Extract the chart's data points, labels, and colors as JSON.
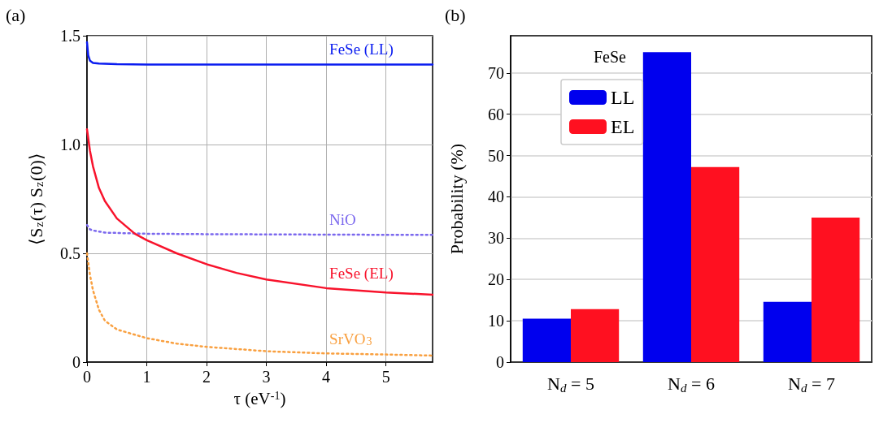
{
  "chart_data": [
    {
      "type": "line",
      "title": "(a)",
      "xlabel": "τ (eV$^{-1}$)",
      "ylabel": "⟨S$_{z}$(τ) S$_{z}$(0)⟩",
      "xlim": [
        0,
        5.78
      ],
      "ylim": [
        0,
        1.5
      ],
      "xticks": [
        0,
        1,
        2,
        3,
        4,
        5
      ],
      "yticks": [
        {
          "value": 0,
          "label": "0"
        },
        {
          "value": 0.5,
          "label": "0.5"
        },
        {
          "value": 1,
          "label": "1.0"
        },
        {
          "value": 1.5,
          "label": "1.5"
        }
      ],
      "grid": true,
      "marker": "none",
      "series": [
        {
          "name": "FeSe (LL)",
          "color": "#0a1cf0",
          "line_style": "solid",
          "x": [
            0,
            0.02,
            0.05,
            0.1,
            0.2,
            0.5,
            1,
            2,
            3,
            4,
            5,
            5.78
          ],
          "values": [
            1.47,
            1.41,
            1.385,
            1.375,
            1.372,
            1.369,
            1.368,
            1.368,
            1.368,
            1.368,
            1.368,
            1.368
          ]
        },
        {
          "name": "NiO",
          "color": "#7b68ee",
          "line_style": "dotted",
          "x": [
            0,
            0.05,
            0.1,
            0.3,
            1,
            2,
            3,
            4,
            5,
            5.78
          ],
          "values": [
            0.63,
            0.61,
            0.605,
            0.595,
            0.59,
            0.588,
            0.587,
            0.586,
            0.585,
            0.585
          ]
        },
        {
          "name": "FeSe (EL)",
          "color": "#f8132c",
          "line_style": "solid",
          "x": [
            0,
            0.05,
            0.1,
            0.2,
            0.3,
            0.5,
            0.8,
            1,
            1.5,
            2,
            2.5,
            3,
            4,
            5,
            5.78
          ],
          "values": [
            1.07,
            0.97,
            0.9,
            0.8,
            0.74,
            0.66,
            0.59,
            0.56,
            0.5,
            0.45,
            0.41,
            0.38,
            0.34,
            0.32,
            0.31
          ]
        },
        {
          "name": "SrVO$_{3}$",
          "color": "#f9a040",
          "line_style": "dotted",
          "x": [
            0,
            0.05,
            0.1,
            0.2,
            0.3,
            0.5,
            1,
            1.5,
            2,
            3,
            4,
            5,
            5.78
          ],
          "values": [
            0.5,
            0.4,
            0.33,
            0.24,
            0.19,
            0.15,
            0.11,
            0.085,
            0.07,
            0.05,
            0.04,
            0.035,
            0.03
          ]
        }
      ]
    },
    {
      "type": "bar",
      "title": "(b)",
      "ylabel": "Probability (%)",
      "categories": [
        "N$_{d}$ = 5",
        "N$_{d}$ = 6",
        "N$_{d}$ = 7"
      ],
      "ylim": [
        0,
        79
      ],
      "yticks": [
        0,
        10,
        20,
        30,
        40,
        50,
        60,
        70
      ],
      "grid": "y",
      "legend": "top left",
      "legend_title": "FeSe",
      "series": [
        {
          "name": "LL",
          "color": "#0000ee",
          "values": [
            10.5,
            75,
            14.6
          ]
        },
        {
          "name": "EL",
          "color": "#ff1020",
          "values": [
            12.8,
            47.2,
            35
          ]
        }
      ]
    }
  ]
}
